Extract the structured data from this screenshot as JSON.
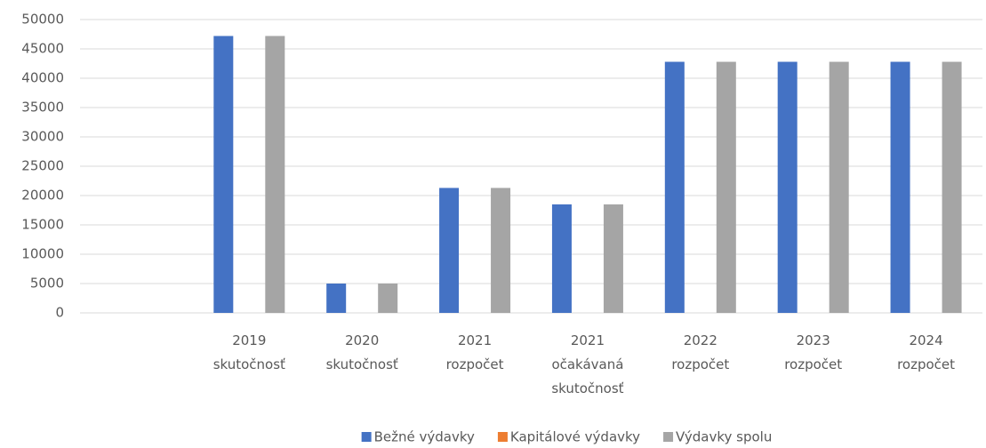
{
  "chart_data": {
    "type": "bar",
    "categories": [
      null,
      [
        "2019",
        "skutočnosť"
      ],
      [
        "2020",
        "skutočnosť"
      ],
      [
        "2021",
        "rozpočet"
      ],
      [
        "2021",
        "očakávaná",
        "skutočnosť"
      ],
      [
        "2022",
        "rozpočet"
      ],
      [
        "2023",
        "rozpočet"
      ],
      [
        "2024",
        "rozpočet"
      ]
    ],
    "series": [
      {
        "name": "Bežné výdavky",
        "color": "#4472c4",
        "values": [
          null,
          47200,
          5000,
          21300,
          18500,
          42800,
          42800,
          42800
        ]
      },
      {
        "name": "Kapitálové výdavky",
        "color": "#ed7d31",
        "values": [
          null,
          0,
          0,
          0,
          0,
          0,
          0,
          0
        ]
      },
      {
        "name": "Výdavky spolu",
        "color": "#a5a5a5",
        "values": [
          null,
          47200,
          5000,
          21300,
          18500,
          42800,
          42800,
          42800
        ]
      }
    ],
    "ylim": [
      0,
      50000
    ],
    "yticks": [
      0,
      5000,
      10000,
      15000,
      20000,
      25000,
      30000,
      35000,
      40000,
      45000,
      50000
    ],
    "grid": true,
    "legend": "bottom"
  }
}
